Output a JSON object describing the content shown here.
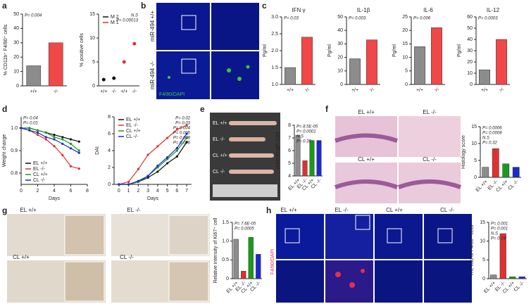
{
  "panel_labels": [
    "a",
    "b",
    "c",
    "d",
    "e",
    "f",
    "g",
    "h"
  ],
  "images": {
    "b": {
      "rows": [
        "miR-494 +/+",
        "miR-494 -/-"
      ],
      "stain": "F4/80/DAPI"
    },
    "e": {
      "rows": [
        "EL +/+",
        "EL -/-",
        "CL +/+",
        "CL -/-"
      ]
    },
    "f": {
      "groups": [
        "EL +/+",
        "EL -/-",
        "CL +/+",
        "CL -/-"
      ]
    },
    "g": {
      "groups": [
        "EL +/+",
        "EL -/-",
        "CL +/+",
        "CL -/-"
      ]
    },
    "h": {
      "groups": [
        "EL +/+",
        "EL -/-",
        "CL +/+",
        "CL -/-"
      ],
      "stain": "F4/80/DAPI"
    }
  },
  "chart_data": [
    {
      "type": "bar",
      "ylabel": "% CD11b⁺ F4/80⁺ cells",
      "categories": [
        "+/+",
        "-/-"
      ],
      "values": [
        14,
        30
      ],
      "colors": [
        "#8c8c8c",
        "#f04848"
      ],
      "ylim": [
        0,
        50
      ],
      "yticks": [
        0,
        10,
        20,
        30,
        40,
        50
      ],
      "annotations": [
        "P= 0.004"
      ]
    },
    {
      "type": "dot",
      "ylabel": "% positive cells",
      "categories": [
        "+/+",
        "-/-",
        "+/+",
        "-/-"
      ],
      "series": [
        {
          "name": "M 2",
          "color": "#111111",
          "values": [
            1.3,
            1.6,
            null,
            null
          ]
        },
        {
          "name": "M 1",
          "color": "#e03030",
          "values": [
            null,
            null,
            5,
            8.8
          ]
        }
      ],
      "ylim": [
        0,
        15
      ],
      "yticks": [
        0,
        5,
        10,
        15
      ],
      "legend": "upper left",
      "annotations": [
        "N.S",
        "P= 0.00013"
      ]
    },
    {
      "type": "bar",
      "title": "IFN γ",
      "ylabel": "Pg/ml",
      "categories": [
        "+/+",
        "-/-"
      ],
      "values": [
        1.5,
        2.4
      ],
      "colors": [
        "#8c8c8c",
        "#f04848"
      ],
      "ylim": [
        1.0,
        3.0
      ],
      "yticks": [
        {
          "value": 1,
          "label": "1.0"
        },
        1.5,
        {
          "value": 2,
          "label": "2.0"
        },
        2.5,
        {
          "value": 3,
          "label": "3.0"
        }
      ],
      "annotations": [
        "P= 0.03"
      ]
    },
    {
      "type": "bar",
      "title": "IL-1β",
      "ylabel": "Pg/ml",
      "categories": [
        "+/+",
        "-/-"
      ],
      "values": [
        19,
        33
      ],
      "colors": [
        "#8c8c8c",
        "#f04848"
      ],
      "ylim": [
        0,
        50
      ],
      "yticks": [
        0,
        10,
        20,
        30,
        40,
        50
      ],
      "annotations": [
        "P= 0.003"
      ]
    },
    {
      "type": "bar",
      "title": "IL-6",
      "ylabel": "Pg/ml",
      "categories": [
        "+/+",
        "-/-"
      ],
      "values": [
        14,
        21
      ],
      "colors": [
        "#8c8c8c",
        "#f04848"
      ],
      "ylim": [
        0,
        25
      ],
      "yticks": [
        0,
        5,
        10,
        15,
        20,
        25
      ],
      "annotations": [
        "P= 0.006"
      ]
    },
    {
      "type": "bar",
      "title": "IL-12",
      "ylabel": "Pg/ml",
      "categories": [
        "+/+",
        "-/-"
      ],
      "values": [
        13,
        40
      ],
      "colors": [
        "#8c8c8c",
        "#f04848"
      ],
      "ylim": [
        0,
        60
      ],
      "yticks": [
        0,
        10,
        20,
        30,
        40,
        50,
        60
      ],
      "annotations": [
        "P= 0.0003"
      ]
    },
    {
      "type": "line",
      "ylabel": "Weight change",
      "xlabel": "Days",
      "x": [
        0,
        1,
        2,
        3,
        4,
        5,
        6,
        7
      ],
      "xlim": [
        0,
        8
      ],
      "xticks": [
        0,
        2,
        4,
        6,
        8
      ],
      "ylim": [
        0.75,
        1.05
      ],
      "yticks": [
        0.8,
        0.9,
        {
          "value": 1,
          "label": "1.0"
        }
      ],
      "legend": "lower left",
      "series": [
        {
          "name": "EL +/+",
          "color": "#111111",
          "values": [
            1,
            1,
            0.99,
            0.98,
            0.97,
            0.96,
            0.95,
            0.94
          ]
        },
        {
          "name": "EL -/-",
          "color": "#e03030",
          "values": [
            1,
            0.99,
            0.97,
            0.95,
            0.92,
            0.88,
            0.83,
            0.82
          ]
        },
        {
          "name": "CL +/+",
          "color": "#1a9a1a",
          "values": [
            1,
            1,
            0.99,
            0.98,
            0.96,
            0.95,
            0.93,
            0.9
          ]
        },
        {
          "name": "CL -/-",
          "color": "#1a2ad0",
          "values": [
            1,
            0.99,
            0.98,
            0.96,
            0.95,
            0.93,
            0.91,
            0.89
          ]
        }
      ],
      "annotations": [
        "P= 0.04",
        "P= 0.01"
      ]
    },
    {
      "type": "line",
      "ylabel": "DAI",
      "xlabel": "Days",
      "x": [
        0,
        1,
        2,
        3,
        4,
        5,
        6,
        7
      ],
      "xlim": [
        -0.5,
        7.5
      ],
      "xticks": [
        0,
        1,
        2,
        3,
        4,
        5,
        6,
        7
      ],
      "ylim": [
        0,
        8
      ],
      "yticks": [
        0,
        2,
        4,
        6,
        8
      ],
      "legend": "upper left",
      "series": [
        {
          "name": "EL +/+",
          "color": "#111111",
          "values": [
            0,
            0,
            0.3,
            0.8,
            1.5,
            2.5,
            3.3,
            5
          ]
        },
        {
          "name": "EL -/-",
          "color": "#e03030",
          "values": [
            0,
            0.3,
            1.8,
            3.5,
            4.5,
            5.5,
            6.5,
            7
          ]
        },
        {
          "name": "CL +/+",
          "color": "#1a9a1a",
          "values": [
            0,
            0,
            0.3,
            1,
            2,
            3,
            4,
            5.5
          ]
        },
        {
          "name": "CL -/-",
          "color": "#1a2ad0",
          "values": [
            0,
            0,
            0.4,
            1,
            2.2,
            3.2,
            4.3,
            6
          ]
        }
      ],
      "annotations": [
        "P= 0.02",
        "P= 0.03",
        "P= 0.004",
        "P= 0.005",
        "P= 0.008",
        "P= 0.006"
      ]
    },
    {
      "type": "bar",
      "ylabel": "colon length (cm)",
      "categories": [
        "EL +/+",
        "EL -/-",
        "CL +/+",
        "CL -/-"
      ],
      "values": [
        7.2,
        5.2,
        6.8,
        6.8
      ],
      "colors": [
        "#8c8c8c",
        "#e03030",
        "#1a9a1a",
        "#1a2ad0"
      ],
      "ylim": [
        4,
        8
      ],
      "yticks": [
        4,
        5,
        6,
        7,
        8
      ],
      "annotations": [
        "P= 8.5E-05",
        "P= 0.0001",
        "N.S",
        "P= 0.35"
      ]
    },
    {
      "type": "bar",
      "ylabel": "Histology score",
      "categories": [
        "EL +/+",
        "EL -/-",
        "CL +/+",
        "CL -/-"
      ],
      "values": [
        3,
        8.5,
        4,
        3
      ],
      "colors": [
        "#8c8c8c",
        "#e03030",
        "#1a9a1a",
        "#1a2ad0"
      ],
      "ylim": [
        0,
        15
      ],
      "yticks": [
        0,
        5,
        10,
        15
      ],
      "annotations": [
        "P= 0.0006",
        "P= 0.0008",
        "N.S",
        "P= 0.32"
      ]
    },
    {
      "type": "bar",
      "ylabel": "Relative intensity of Ki67⁺ cell",
      "categories": [
        "EL +/+",
        "EL -/-",
        "CL +/+",
        "CL -/-"
      ],
      "values": [
        1.05,
        0.2,
        1.1,
        0.65
      ],
      "colors": [
        "#8c8c8c",
        "#e03030",
        "#1a9a1a",
        "#1a2ad0"
      ],
      "ylim": [
        0,
        1.5
      ],
      "yticks": [
        0,
        0.5,
        {
          "value": 1,
          "label": "1.0"
        },
        1.5
      ],
      "annotations": [
        "P= 7.6E-05",
        "P= 0.0005"
      ]
    },
    {
      "type": "bar",
      "ylabel": "The fold of F4/80⁺ cells",
      "categories": [
        "EL +/+",
        "EL -/-",
        "CL +/+",
        "CL -/-"
      ],
      "values": [
        1,
        12,
        0.5,
        0.5
      ],
      "colors": [
        "#8c8c8c",
        "#e03030",
        "#1a9a1a",
        "#1a2ad0"
      ],
      "ylim": [
        0,
        15
      ],
      "yticks": [
        0,
        5,
        10,
        15
      ],
      "annotations": [
        "P= 0.001",
        "P= 0.001",
        "N.S",
        "P= 0.19"
      ]
    }
  ]
}
